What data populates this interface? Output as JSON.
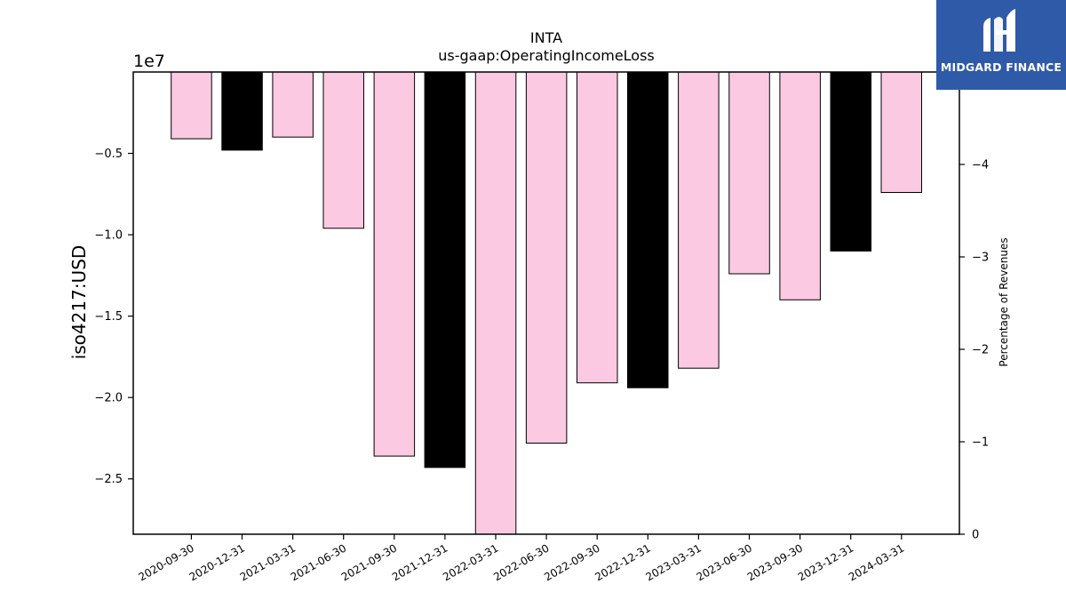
{
  "brand": {
    "name": "MIDGARD FINANCE",
    "bg_color": "#2f5aa8"
  },
  "chart_data": {
    "type": "bar",
    "title": "INTA",
    "subtitle": "us-gaap:OperatingIncomeLoss",
    "ylabel": "iso4217:USD",
    "y2label": "Percentage of Revenues",
    "y_offset_label": "1e7",
    "categories": [
      "2020-09-30",
      "2020-12-31",
      "2021-03-31",
      "2021-06-30",
      "2021-09-30",
      "2021-12-31",
      "2022-03-31",
      "2022-06-30",
      "2022-09-30",
      "2022-12-31",
      "2023-03-31",
      "2023-06-30",
      "2023-09-30",
      "2023-12-31",
      "2024-03-31"
    ],
    "values": [
      -4100000,
      -4800000,
      -4000000,
      -9600000,
      -23600000,
      -24300000,
      -28400000,
      -22800000,
      -19100000,
      -19400000,
      -18200000,
      -12400000,
      -14000000,
      -11000000,
      -7400000
    ],
    "bar_colors": [
      "#fcc9e3",
      "#000000",
      "#fcc9e3",
      "#fcc9e3",
      "#fcc9e3",
      "#000000",
      "#fcc9e3",
      "#fcc9e3",
      "#fcc9e3",
      "#000000",
      "#fcc9e3",
      "#fcc9e3",
      "#fcc9e3",
      "#000000",
      "#fcc9e3"
    ],
    "ylim": [
      -28400000,
      0
    ],
    "yticks": [
      -5000000,
      -10000000,
      -15000000,
      -20000000,
      -25000000
    ],
    "ytick_labels": [
      "−0.5",
      "−1.0",
      "−1.5",
      "−2.0",
      "−2.5"
    ],
    "y2lim": [
      0,
      -5
    ],
    "y2ticks": [
      -4,
      -3,
      -2,
      -1,
      0
    ],
    "y2tick_labels": [
      "−4",
      "−3",
      "−2",
      "−1",
      "0"
    ],
    "grid": false,
    "colors": {
      "pink": "#fcc9e3",
      "black": "#000000"
    }
  }
}
